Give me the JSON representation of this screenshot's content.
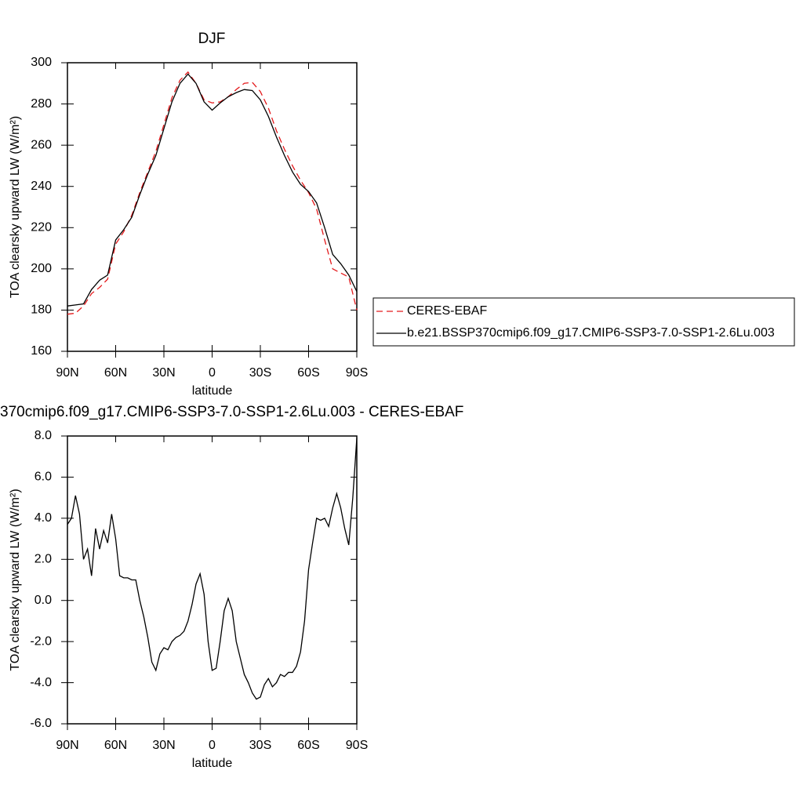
{
  "chart_data": [
    {
      "type": "line",
      "title": "DJF",
      "x_label": "latitude",
      "y_label": "TOA clearsky upward LW (W/m²)",
      "x": [
        90,
        85,
        80,
        75,
        70,
        65,
        60,
        55,
        50,
        45,
        40,
        35,
        30,
        25,
        20,
        15,
        10,
        5,
        0,
        -5,
        -10,
        -15,
        -20,
        -25,
        -30,
        -35,
        -40,
        -45,
        -50,
        -55,
        -60,
        -65,
        -70,
        -75,
        -80,
        -85,
        -90
      ],
      "series": [
        {
          "name": "CERES-EBAF",
          "color": "#e41a1c",
          "dash": true,
          "values": [
            178,
            178.5,
            182,
            188,
            191,
            195,
            212,
            218,
            226,
            237,
            247,
            257,
            270,
            283,
            291.5,
            295.5,
            290,
            282,
            280.5,
            281,
            283.5,
            287,
            290,
            290.5,
            286,
            278,
            267,
            258,
            250,
            243,
            237,
            229,
            214,
            200,
            198,
            196,
            180
          ]
        },
        {
          "name": "b.e21.BSSP370cmip6.f09_g17.CMIP6-SSP3-7.0-SSP1-2.6Lu.003",
          "color": "#000000",
          "dash": false,
          "values": [
            182,
            182.5,
            183,
            190,
            194.5,
            197,
            214,
            219,
            225,
            236,
            246,
            255,
            268,
            281,
            290,
            294.5,
            290,
            281,
            277,
            280.5,
            283.5,
            285.5,
            287,
            286.5,
            282,
            274,
            264,
            255,
            247,
            241,
            237.5,
            232,
            220,
            207,
            202.5,
            197,
            189
          ]
        }
      ],
      "xlim": [
        90,
        -90
      ],
      "xticks": [
        {
          "value": 90,
          "label": "90N"
        },
        {
          "value": 60,
          "label": "60N"
        },
        {
          "value": 30,
          "label": "30N"
        },
        0,
        {
          "value": -30,
          "label": "30S"
        },
        {
          "value": -60,
          "label": "60S"
        },
        {
          "value": -90,
          "label": "90S"
        }
      ],
      "ylim": [
        160,
        300
      ],
      "yticks": [
        160,
        180,
        200,
        220,
        240,
        260,
        280,
        300
      ],
      "legend": "right"
    },
    {
      "type": "line",
      "title": "370cmip6.f09_g17.CMIP6-SSP3-7.0-SSP1-2.6Lu.003 - CERES-EBAF",
      "x_label": "latitude",
      "y_label": "TOA clearsky upward LW (W/m²)",
      "x": [
        90,
        87.5,
        85,
        82.5,
        80,
        77.5,
        75,
        72.5,
        70,
        67.5,
        65,
        62.5,
        60,
        57.5,
        55,
        52.5,
        50,
        47.5,
        45,
        42.5,
        40,
        37.5,
        35,
        32.5,
        30,
        27.5,
        25,
        22.5,
        20,
        17.5,
        15,
        12.5,
        10,
        7.5,
        5,
        2.5,
        0,
        -2.5,
        -5,
        -7.5,
        -10,
        -12.5,
        -15,
        -17.5,
        -20,
        -22.5,
        -25,
        -27.5,
        -30,
        -32.5,
        -35,
        -37.5,
        -40,
        -42.5,
        -45,
        -47.5,
        -50,
        -52.5,
        -55,
        -57.5,
        -60,
        -62.5,
        -65,
        -67.5,
        -70,
        -72.5,
        -75,
        -77.5,
        -80,
        -82.5,
        -85,
        -87.5,
        -90
      ],
      "series": [
        {
          "color": "#000000",
          "values": [
            3.7,
            4.0,
            5.1,
            4.2,
            2.0,
            2.5,
            1.2,
            3.5,
            2.5,
            3.4,
            2.8,
            4.2,
            3.0,
            1.2,
            1.1,
            1.1,
            1.0,
            1.0,
            0.0,
            -0.8,
            -1.8,
            -3.0,
            -3.4,
            -2.6,
            -2.3,
            -2.4,
            -2.0,
            -1.8,
            -1.7,
            -1.5,
            -1.0,
            -0.2,
            0.8,
            1.3,
            0.3,
            -2.0,
            -3.4,
            -3.3,
            -2.0,
            -0.5,
            0.1,
            -0.5,
            -2.0,
            -2.8,
            -3.6,
            -4.0,
            -4.5,
            -4.8,
            -4.7,
            -4.1,
            -3.8,
            -4.2,
            -4.0,
            -3.6,
            -3.7,
            -3.5,
            -3.5,
            -3.2,
            -2.5,
            -1.0,
            1.5,
            2.8,
            4.0,
            3.9,
            4.0,
            3.6,
            4.5,
            5.2,
            4.5,
            3.5,
            2.7,
            5.0,
            7.9
          ]
        }
      ],
      "xlim": [
        90,
        -90
      ],
      "xticks": [
        {
          "value": 90,
          "label": "90N"
        },
        {
          "value": 60,
          "label": "60N"
        },
        {
          "value": 30,
          "label": "30N"
        },
        0,
        {
          "value": -30,
          "label": "30S"
        },
        {
          "value": -60,
          "label": "60S"
        },
        {
          "value": -90,
          "label": "90S"
        }
      ],
      "ylim": [
        -6,
        8
      ],
      "yticks": [
        {
          "value": -6,
          "label": "-6.0"
        },
        {
          "value": -4,
          "label": "-4.0"
        },
        {
          "value": -2,
          "label": "-2.0"
        },
        {
          "value": 0,
          "label": "0.0"
        },
        {
          "value": 2,
          "label": "2.0"
        },
        {
          "value": 4,
          "label": "4.0"
        },
        {
          "value": 6,
          "label": "6.0"
        },
        {
          "value": 8,
          "label": "8.0"
        }
      ]
    }
  ]
}
